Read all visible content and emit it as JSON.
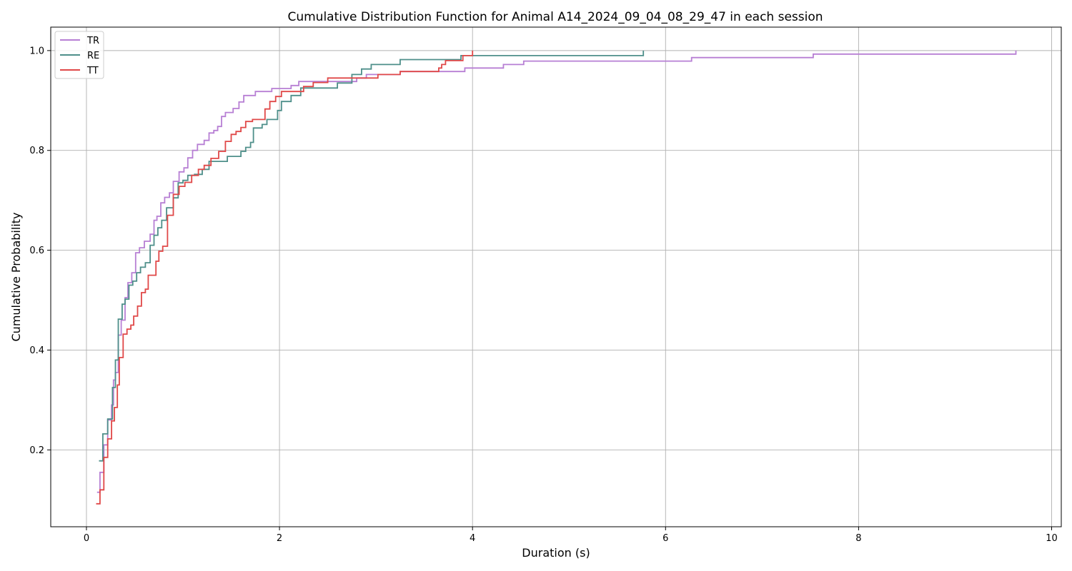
{
  "chart_data": {
    "type": "line",
    "title": "Cumulative Distribution Function for Animal A14_2024_09_04_08_29_47 in each session",
    "xlabel": "Duration (s)",
    "ylabel": "Cumulative Probability",
    "xlim": [
      -0.37,
      10.1
    ],
    "ylim": [
      0.046,
      1.047
    ],
    "xticks": [
      0,
      2,
      4,
      6,
      8,
      10
    ],
    "yticks": [
      0.2,
      0.4,
      0.6,
      0.8,
      1.0
    ],
    "xtick_labels": [
      "0",
      "2",
      "4",
      "6",
      "8",
      "10"
    ],
    "ytick_labels": [
      "0.2",
      "0.4",
      "0.6",
      "0.8",
      "1.0"
    ],
    "grid": true,
    "legend_position": "top-left",
    "step": "post",
    "series": [
      {
        "name": "TR",
        "color": "#b77fd4",
        "x": [
          0.11,
          0.14,
          0.18,
          0.22,
          0.26,
          0.28,
          0.3,
          0.33,
          0.36,
          0.4,
          0.43,
          0.47,
          0.51,
          0.55,
          0.6,
          0.66,
          0.7,
          0.73,
          0.77,
          0.81,
          0.86,
          0.9,
          0.96,
          1.01,
          1.05,
          1.1,
          1.15,
          1.22,
          1.27,
          1.32,
          1.36,
          1.4,
          1.44,
          1.52,
          1.58,
          1.63,
          1.75,
          1.92,
          2.12,
          2.2,
          2.45,
          2.65,
          2.8,
          2.9,
          3.25,
          3.5,
          3.92,
          4.32,
          4.53,
          6.27,
          7.53,
          9.63
        ],
        "y": [
          0.115,
          0.155,
          0.21,
          0.26,
          0.29,
          0.34,
          0.355,
          0.43,
          0.46,
          0.505,
          0.535,
          0.555,
          0.595,
          0.605,
          0.618,
          0.632,
          0.66,
          0.668,
          0.695,
          0.706,
          0.715,
          0.738,
          0.757,
          0.765,
          0.785,
          0.8,
          0.812,
          0.82,
          0.835,
          0.84,
          0.848,
          0.868,
          0.876,
          0.884,
          0.897,
          0.91,
          0.918,
          0.924,
          0.93,
          0.938,
          0.938,
          0.938,
          0.945,
          0.952,
          0.958,
          0.958,
          0.965,
          0.972,
          0.979,
          0.986,
          0.993,
          1.0
        ]
      },
      {
        "name": "RE",
        "color": "#4e8f8a",
        "x": [
          0.13,
          0.17,
          0.22,
          0.27,
          0.3,
          0.33,
          0.37,
          0.4,
          0.44,
          0.48,
          0.52,
          0.56,
          0.61,
          0.66,
          0.7,
          0.74,
          0.78,
          0.83,
          0.9,
          0.95,
          1.0,
          1.05,
          1.12,
          1.2,
          1.27,
          1.46,
          1.6,
          1.65,
          1.7,
          1.73,
          1.82,
          1.87,
          1.98,
          2.02,
          2.12,
          2.22,
          2.6,
          2.75,
          2.85,
          2.95,
          3.25,
          3.88,
          5.77
        ],
        "y": [
          0.178,
          0.232,
          0.262,
          0.325,
          0.38,
          0.462,
          0.492,
          0.502,
          0.53,
          0.538,
          0.555,
          0.566,
          0.575,
          0.61,
          0.63,
          0.645,
          0.66,
          0.685,
          0.705,
          0.735,
          0.74,
          0.75,
          0.752,
          0.762,
          0.778,
          0.788,
          0.798,
          0.806,
          0.816,
          0.845,
          0.852,
          0.862,
          0.88,
          0.898,
          0.91,
          0.925,
          0.935,
          0.952,
          0.963,
          0.972,
          0.982,
          0.99,
          1.0
        ]
      },
      {
        "name": "TT",
        "color": "#e04848",
        "x": [
          0.1,
          0.14,
          0.18,
          0.22,
          0.26,
          0.29,
          0.32,
          0.34,
          0.38,
          0.42,
          0.46,
          0.49,
          0.53,
          0.57,
          0.61,
          0.64,
          0.72,
          0.75,
          0.79,
          0.84,
          0.9,
          0.96,
          1.02,
          1.09,
          1.16,
          1.22,
          1.29,
          1.37,
          1.44,
          1.5,
          1.55,
          1.6,
          1.65,
          1.72,
          1.85,
          1.9,
          1.96,
          2.02,
          2.12,
          2.25,
          2.35,
          2.5,
          2.75,
          2.95,
          3.02,
          3.25,
          3.65,
          3.68,
          3.72,
          3.9,
          4.0
        ],
        "y": [
          0.092,
          0.12,
          0.185,
          0.222,
          0.258,
          0.285,
          0.33,
          0.385,
          0.432,
          0.442,
          0.45,
          0.468,
          0.488,
          0.515,
          0.522,
          0.55,
          0.578,
          0.598,
          0.608,
          0.67,
          0.712,
          0.728,
          0.736,
          0.75,
          0.762,
          0.77,
          0.784,
          0.798,
          0.818,
          0.832,
          0.838,
          0.846,
          0.858,
          0.862,
          0.883,
          0.898,
          0.908,
          0.918,
          0.918,
          0.928,
          0.936,
          0.945,
          0.945,
          0.945,
          0.952,
          0.958,
          0.965,
          0.972,
          0.98,
          0.99,
          1.0
        ]
      }
    ]
  }
}
